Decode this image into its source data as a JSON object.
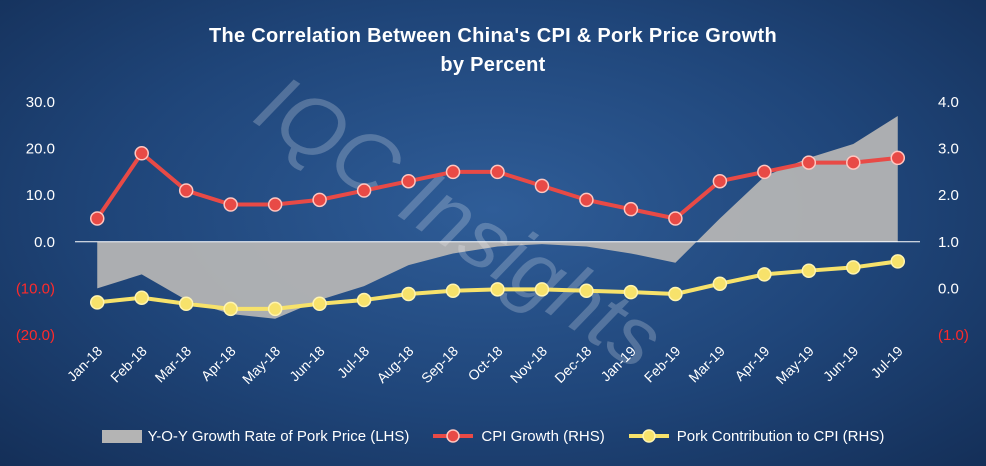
{
  "chart_data": {
    "type": "line",
    "title": "The Correlation Between China's CPI & Pork Price Growth",
    "subtitle": "by Percent",
    "watermark": "IQC Insights",
    "categories": [
      "Jan-18",
      "Feb-18",
      "Mar-18",
      "Apr-18",
      "May-18",
      "Jun-18",
      "Jul-18",
      "Aug-18",
      "Sep-18",
      "Oct-18",
      "Nov-18",
      "Dec-18",
      "Jan-19",
      "Feb-19",
      "Mar-19",
      "Apr-19",
      "May-19",
      "Jun-19",
      "Jul-19"
    ],
    "left_axis": {
      "ylim": [
        -20,
        30
      ],
      "ticks": [
        30,
        20,
        10,
        0,
        -10,
        -20
      ],
      "tick_labels": [
        "30.0",
        "20.0",
        "10.0",
        "0.0",
        "(10.0)",
        "(20.0)"
      ]
    },
    "right_axis": {
      "ylim": [
        -1,
        4
      ],
      "ticks": [
        4,
        3,
        2,
        1,
        0,
        -1
      ],
      "tick_labels": [
        "4.0",
        "3.0",
        "2.0",
        "1.0",
        "0.0",
        "(1.0)"
      ]
    },
    "series": [
      {
        "name": "Y-O-Y Growth Rate of Pork Price (LHS)",
        "type": "area",
        "axis": "left",
        "color": "#b4b4b4",
        "values": [
          -10.0,
          -7.0,
          -12.5,
          -15.5,
          -16.5,
          -12.5,
          -9.5,
          -5.0,
          -2.5,
          -1.0,
          -0.5,
          -1.0,
          -2.5,
          -4.5,
          5.0,
          14.0,
          18.0,
          21.0,
          27.0
        ]
      },
      {
        "name": "CPI Growth (RHS)",
        "type": "line",
        "axis": "right",
        "color": "#e84a46",
        "values": [
          1.5,
          2.9,
          2.1,
          1.8,
          1.8,
          1.9,
          2.1,
          2.3,
          2.5,
          2.5,
          2.2,
          1.9,
          1.7,
          1.5,
          2.3,
          2.5,
          2.7,
          2.7,
          2.8
        ]
      },
      {
        "name": "Pork Contribution to CPI (RHS)",
        "type": "line",
        "axis": "right",
        "color": "#f7e26b",
        "values": [
          -0.3,
          -0.2,
          -0.33,
          -0.44,
          -0.44,
          -0.33,
          -0.25,
          -0.12,
          -0.05,
          -0.02,
          -0.02,
          -0.05,
          -0.08,
          -0.12,
          0.1,
          0.3,
          0.38,
          0.45,
          0.58
        ]
      }
    ],
    "grid": false,
    "legend": "bottom"
  },
  "colors": {
    "left_negative_tick": "#ff2a2a",
    "tick": "#ffffff",
    "zero_line": "#ffffff"
  }
}
